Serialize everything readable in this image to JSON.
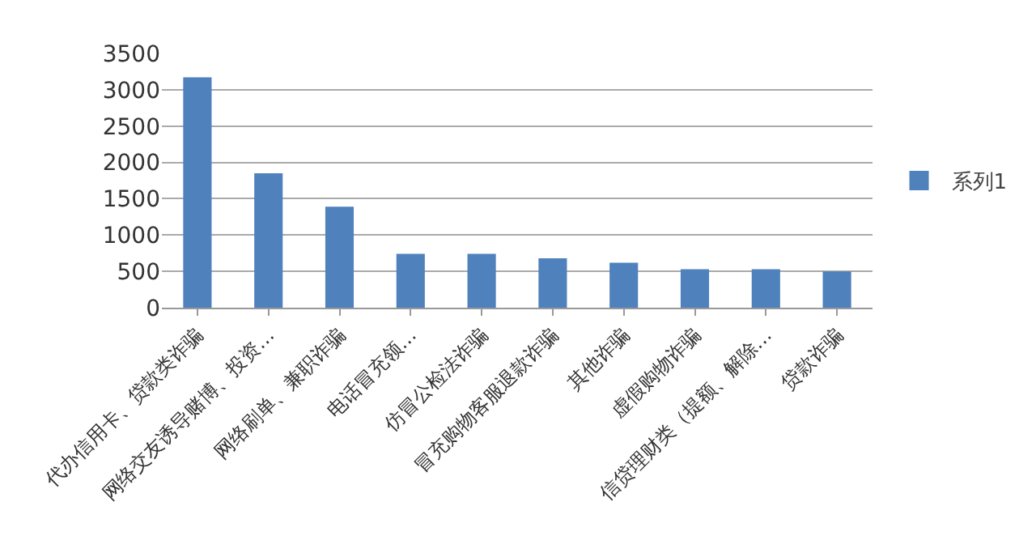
{
  "chart_data": {
    "type": "bar",
    "categories": [
      "代办信用卡、贷款类诈骗",
      "网络交友诱导赌博、投资…",
      "网络刷单、兼职诈骗",
      "电话冒充领…",
      "仿冒公检法诈骗",
      "冒充购物客服退款诈骗",
      "其他诈骗",
      "虚假购物诈骗",
      "信贷理财类（提额、解除…",
      "贷款诈骗"
    ],
    "series": [
      {
        "name": "系列1",
        "color": "#4f81bd",
        "values": [
          3170,
          1850,
          1390,
          740,
          740,
          680,
          620,
          530,
          530,
          500
        ]
      }
    ],
    "ylim": [
      0,
      3500
    ],
    "yticks": [
      0,
      500,
      1000,
      1500,
      2000,
      2500,
      3000,
      3500
    ],
    "grid": "y",
    "legend": "right"
  }
}
